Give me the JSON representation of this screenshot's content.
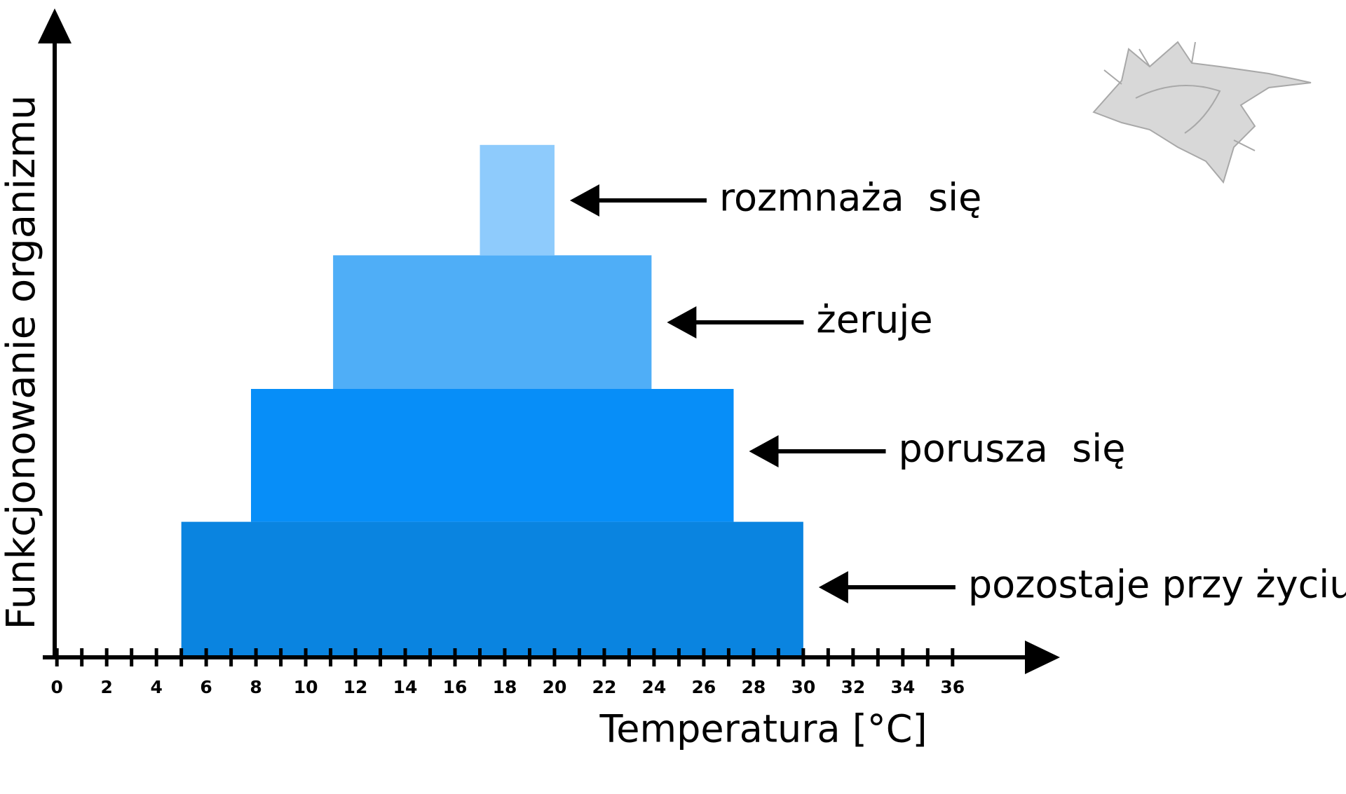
{
  "chart_data": {
    "type": "range-bar",
    "x_label": "Temperatura [°C]",
    "y_label": "Funkcjonowanie organizmu",
    "xlim": [
      0,
      36
    ],
    "xticks": [
      0,
      2,
      4,
      6,
      8,
      10,
      12,
      14,
      16,
      18,
      20,
      22,
      24,
      26,
      28,
      30,
      32,
      34,
      36
    ],
    "xminorticks": [
      1,
      3,
      5,
      7,
      9,
      11,
      13,
      15,
      17,
      19,
      21,
      23,
      25,
      27,
      29,
      31,
      33,
      35
    ],
    "series": [
      {
        "name": "pozostaje przy życiu",
        "color": "#0a84e0",
        "start": 5,
        "end": 30
      },
      {
        "name": "porusza  się",
        "color": "#078ef8",
        "start": 7.8,
        "end": 27.2
      },
      {
        "name": "żeruje",
        "color": "#4faef7",
        "start": 11.1,
        "end": 23.9
      },
      {
        "name": "rozmnaża  się",
        "color": "#8ecbfc",
        "start": 17,
        "end": 20
      }
    ]
  }
}
